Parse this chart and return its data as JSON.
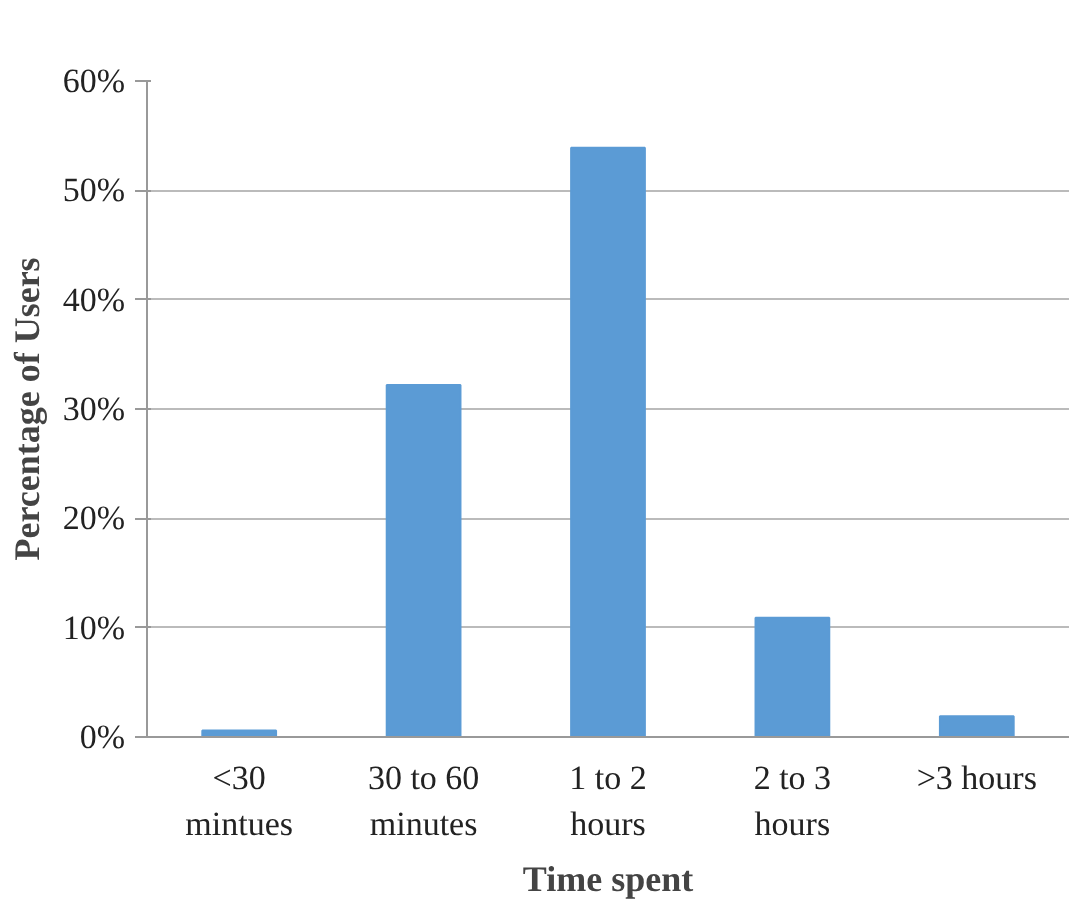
{
  "chart_data": {
    "type": "bar",
    "xlabel": "Time spent",
    "ylabel": "Percentage of Users",
    "categories": [
      "<30\nmintues",
      "30 to 60\nminutes",
      "1 to 2\nhours",
      "2 to 3\nhours",
      ">3 hours"
    ],
    "values": [
      0.6,
      32.2,
      53.9,
      10.9,
      1.9
    ],
    "color": "#5b9bd5",
    "ylim": [
      0,
      60
    ],
    "yticks": [
      {
        "value": 0,
        "label": "0%"
      },
      {
        "value": 10,
        "label": "10%"
      },
      {
        "value": 20,
        "label": "20%"
      },
      {
        "value": 30,
        "label": "30%"
      },
      {
        "value": 40,
        "label": "40%"
      },
      {
        "value": 50,
        "label": "50%"
      },
      {
        "value": 60,
        "label": "60%"
      }
    ],
    "grid": "y"
  }
}
